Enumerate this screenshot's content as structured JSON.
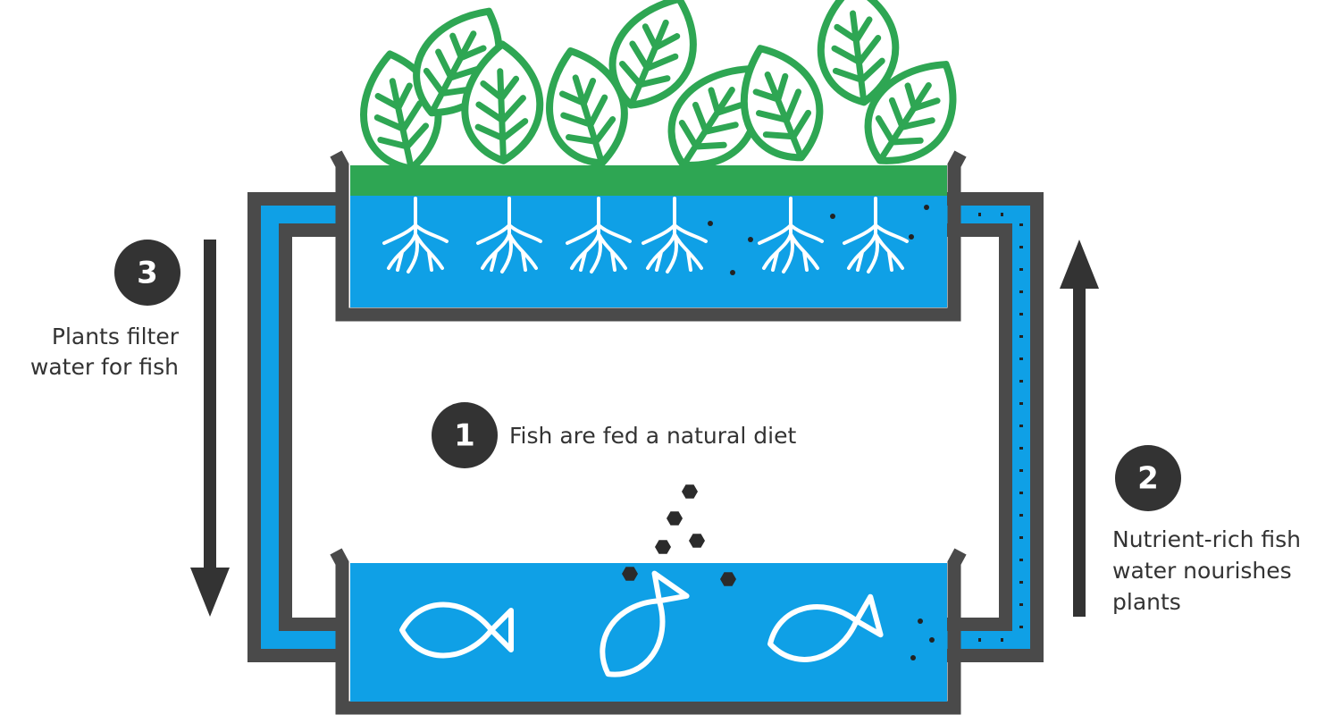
{
  "steps": [
    {
      "number": 1,
      "label": [
        "Fish are fed a natural diet"
      ]
    },
    {
      "number": 2,
      "label": [
        "Nutrient-rich fish",
        "water nourishes",
        "plants"
      ]
    },
    {
      "number": 3,
      "label": [
        "Plants filter",
        "water for fish"
      ]
    }
  ]
}
